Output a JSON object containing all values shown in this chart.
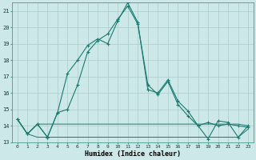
{
  "xlabel": "Humidex (Indice chaleur)",
  "x_values": [
    0,
    1,
    2,
    3,
    4,
    5,
    6,
    7,
    8,
    9,
    10,
    11,
    12,
    13,
    14,
    15,
    16,
    17,
    18,
    19,
    20,
    21,
    22,
    23
  ],
  "series": [
    {
      "y": [
        14.4,
        13.5,
        14.1,
        13.3,
        14.8,
        15.0,
        16.5,
        18.5,
        19.2,
        19.6,
        20.5,
        21.3,
        20.2,
        16.5,
        15.9,
        16.7,
        15.3,
        14.6,
        14.0,
        14.2,
        14.0,
        14.1,
        14.0,
        13.9
      ],
      "marker": true,
      "lw": 0.8
    },
    {
      "y": [
        14.4,
        13.5,
        14.1,
        13.3,
        14.8,
        17.2,
        18.0,
        18.9,
        19.3,
        19.0,
        20.4,
        21.5,
        20.3,
        16.2,
        16.0,
        16.8,
        15.5,
        14.9,
        14.0,
        13.2,
        14.3,
        14.2,
        13.3,
        14.0
      ],
      "marker": true,
      "lw": 0.8
    },
    {
      "y": [
        14.4,
        13.5,
        14.1,
        14.1,
        14.1,
        14.1,
        14.1,
        14.1,
        14.1,
        14.1,
        14.1,
        14.1,
        14.1,
        14.1,
        14.1,
        14.1,
        14.1,
        14.1,
        14.1,
        14.1,
        14.1,
        14.1,
        14.1,
        14.0
      ],
      "marker": false,
      "lw": 0.7
    },
    {
      "y": [
        14.4,
        13.5,
        13.3,
        13.3,
        13.3,
        13.3,
        13.3,
        13.3,
        13.3,
        13.3,
        13.3,
        13.3,
        13.3,
        13.3,
        13.3,
        13.3,
        13.3,
        13.3,
        13.3,
        13.3,
        13.3,
        13.3,
        13.3,
        13.8
      ],
      "marker": false,
      "lw": 0.7
    }
  ],
  "line_color": "#1a7a6e",
  "bg_color": "#cce8e8",
  "grid_color": "#aacccc",
  "ylim": [
    13,
    21.5
  ],
  "yticks": [
    13,
    14,
    15,
    16,
    17,
    18,
    19,
    20,
    21
  ],
  "xticks": [
    0,
    1,
    2,
    3,
    4,
    5,
    6,
    7,
    8,
    9,
    10,
    11,
    12,
    13,
    14,
    15,
    16,
    17,
    18,
    19,
    20,
    21,
    22,
    23
  ],
  "figsize": [
    3.2,
    2.0
  ],
  "dpi": 100
}
